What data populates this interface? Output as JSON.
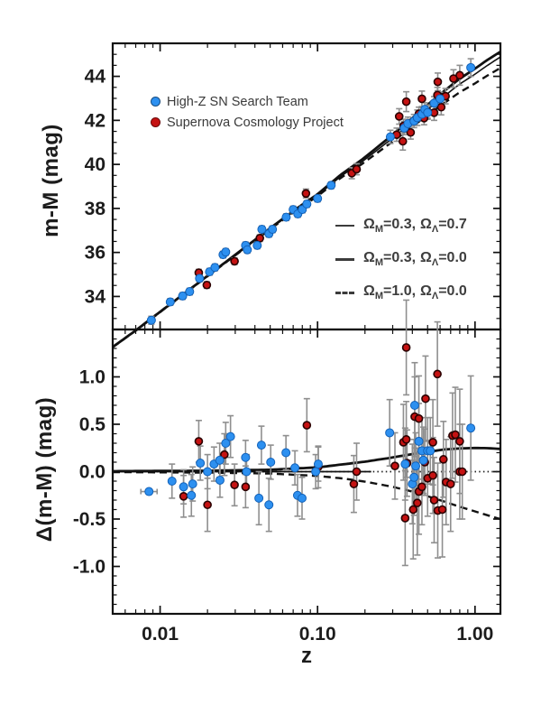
{
  "window": {
    "bg": "#ffffff"
  },
  "axes": {
    "x": {
      "label": "z"
    },
    "top_y": {
      "label": "m-M (mag)"
    },
    "bottom_y": {
      "label": "Δ(m-M) (mag)"
    }
  },
  "legend_teams": [
    {
      "label": "High-Z SN Search Team",
      "color": "#2d90f0",
      "edge": "#1261b8"
    },
    {
      "label": "Supernova Cosmology Project",
      "color": "#c51212",
      "edge": "#2a0000"
    }
  ],
  "legend_models": [
    {
      "omega1": "Ω",
      "sub1": "M",
      "eq1": "=0.3,",
      "omega2": "Ω",
      "sub2": "Λ",
      "eq2": "=0.7",
      "style": "thin"
    },
    {
      "omega1": "Ω",
      "sub1": "M",
      "eq1": "=0.3,",
      "omega2": "Ω",
      "sub2": "Λ",
      "eq2": "=0.0",
      "style": "thick"
    },
    {
      "omega1": "Ω",
      "sub1": "M",
      "eq1": "=1.0,",
      "omega2": "Ω",
      "sub2": "Λ",
      "eq2": "=0.0",
      "style": "dashed"
    }
  ],
  "chart_data": [
    {
      "type": "scatter",
      "panel": "hubble-diagram",
      "title": "",
      "xlabel": "z",
      "ylabel": "m-M (mag)",
      "xscale": "log",
      "xlim": [
        0.005,
        1.45
      ],
      "ylim": [
        32.5,
        45.5
      ],
      "x_major_ticks": [
        0.01,
        0.1,
        1.0
      ],
      "x_tick_labels": [
        "0.01",
        "0.10",
        "1.00"
      ],
      "x_minor_ticks": [
        0.006,
        0.007,
        0.008,
        0.009,
        0.02,
        0.03,
        0.04,
        0.05,
        0.06,
        0.07,
        0.08,
        0.09,
        0.2,
        0.3,
        0.4,
        0.5,
        0.6,
        0.7,
        0.8,
        0.9
      ],
      "y_major_ticks": [
        34,
        36,
        38,
        40,
        42,
        44
      ],
      "y_minor_step": 0.5,
      "series": [
        {
          "name": "Supernova Cosmology Project",
          "color": "#c51212",
          "edge": "#2a0000",
          "points": [
            [
              0.0176,
              35.08,
              0.15
            ],
            [
              0.0198,
              34.52,
              0.15
            ],
            [
              0.0297,
              35.6,
              0.15
            ],
            [
              0.043,
              36.65,
              0.15
            ],
            [
              0.0844,
              38.68,
              0.2
            ],
            [
              0.165,
              39.6,
              0.25
            ],
            [
              0.177,
              39.78,
              0.25
            ],
            [
              0.318,
              41.35,
              0.3
            ],
            [
              0.33,
              42.18,
              0.35
            ],
            [
              0.348,
              41.05,
              0.4
            ],
            [
              0.352,
              41.75,
              0.3
            ],
            [
              0.366,
              42.85,
              0.45
            ],
            [
              0.39,
              41.45,
              0.3
            ],
            [
              0.44,
              42.3,
              0.3
            ],
            [
              0.46,
              42.98,
              0.35
            ],
            [
              0.475,
              42.1,
              0.3
            ],
            [
              0.5,
              42.4,
              0.3
            ],
            [
              0.55,
              42.35,
              0.35
            ],
            [
              0.577,
              43.15,
              0.35
            ],
            [
              0.58,
              43.75,
              0.4
            ],
            [
              0.61,
              42.6,
              0.35
            ],
            [
              0.65,
              43.1,
              0.35
            ],
            [
              0.73,
              43.9,
              0.4
            ],
            [
              0.8,
              44.05,
              0.45
            ]
          ]
        },
        {
          "name": "High-Z SN Search Team",
          "color": "#2d90f0",
          "edge": "#1261b8",
          "points": [
            [
              0.0088,
              32.92,
              0.18
            ],
            [
              0.0116,
              33.75,
              0.15
            ],
            [
              0.0139,
              34.02,
              0.15
            ],
            [
              0.0154,
              34.22,
              0.15
            ],
            [
              0.0178,
              34.82,
              0.15
            ],
            [
              0.0206,
              35.12,
              0.15
            ],
            [
              0.0223,
              35.32,
              0.15
            ],
            [
              0.0251,
              35.9,
              0.15
            ],
            [
              0.0261,
              36.02,
              0.15
            ],
            [
              0.0349,
              36.32,
              0.15
            ],
            [
              0.0358,
              36.12,
              0.15
            ],
            [
              0.0414,
              36.32,
              0.15
            ],
            [
              0.0443,
              37.05,
              0.15
            ],
            [
              0.0491,
              36.85,
              0.15
            ],
            [
              0.0517,
              37.05,
              0.15
            ],
            [
              0.0632,
              37.6,
              0.15
            ],
            [
              0.07,
              37.95,
              0.15
            ],
            [
              0.0749,
              37.75,
              0.15
            ],
            [
              0.08,
              37.95,
              0.15
            ],
            [
              0.0855,
              38.2,
              0.15
            ],
            [
              0.1,
              38.45,
              0.15
            ],
            [
              0.122,
              39.05,
              0.15
            ],
            [
              0.29,
              41.25,
              0.3
            ],
            [
              0.355,
              41.65,
              0.3
            ],
            [
              0.375,
              41.85,
              0.3
            ],
            [
              0.41,
              41.97,
              0.3
            ],
            [
              0.43,
              42.12,
              0.35
            ],
            [
              0.46,
              42.28,
              0.3
            ],
            [
              0.48,
              42.5,
              0.3
            ],
            [
              0.5,
              42.35,
              0.3
            ],
            [
              0.55,
              42.78,
              0.3
            ],
            [
              0.6,
              42.98,
              0.3
            ],
            [
              0.94,
              44.4,
              0.4
            ]
          ]
        }
      ],
      "models": {
        "baseline_open_m": [
          [
            0.005,
            31.7
          ],
          [
            0.007,
            32.45
          ],
          [
            0.009,
            33.05
          ],
          [
            0.012,
            33.72
          ],
          [
            0.016,
            34.4
          ],
          [
            0.022,
            35.15
          ],
          [
            0.03,
            35.88
          ],
          [
            0.04,
            36.55
          ],
          [
            0.055,
            37.3
          ],
          [
            0.075,
            38.0
          ],
          [
            0.1,
            38.6
          ],
          [
            0.14,
            39.45
          ],
          [
            0.19,
            40.1
          ],
          [
            0.26,
            40.85
          ],
          [
            0.36,
            41.65
          ],
          [
            0.5,
            42.5
          ],
          [
            0.65,
            43.15
          ],
          [
            0.8,
            43.65
          ],
          [
            1.0,
            44.1
          ],
          [
            1.2,
            44.5
          ],
          [
            1.45,
            44.88
          ]
        ],
        "lcdm_dm": [
          [
            0.005,
            0.005
          ],
          [
            0.02,
            0.01
          ],
          [
            0.05,
            0.02
          ],
          [
            0.1,
            0.045
          ],
          [
            0.15,
            0.08
          ],
          [
            0.2,
            0.105
          ],
          [
            0.3,
            0.15
          ],
          [
            0.4,
            0.185
          ],
          [
            0.5,
            0.21
          ],
          [
            0.65,
            0.235
          ],
          [
            0.8,
            0.245
          ],
          [
            1.0,
            0.25
          ],
          [
            1.2,
            0.248
          ],
          [
            1.45,
            0.24
          ]
        ],
        "eds_dm": [
          [
            0.005,
            -0.005
          ],
          [
            0.02,
            -0.01
          ],
          [
            0.05,
            -0.02
          ],
          [
            0.1,
            -0.045
          ],
          [
            0.15,
            -0.075
          ],
          [
            0.2,
            -0.105
          ],
          [
            0.3,
            -0.16
          ],
          [
            0.4,
            -0.21
          ],
          [
            0.5,
            -0.26
          ],
          [
            0.65,
            -0.32
          ],
          [
            0.8,
            -0.37
          ],
          [
            1.0,
            -0.42
          ],
          [
            1.2,
            -0.46
          ],
          [
            1.45,
            -0.5
          ]
        ]
      }
    },
    {
      "type": "scatter",
      "panel": "residuals",
      "title": "",
      "xlabel": "z",
      "ylabel": "Δ(m-M) (mag)",
      "xscale": "log",
      "xlim": [
        0.005,
        1.45
      ],
      "ylim": [
        -1.5,
        1.5
      ],
      "y_major_ticks": [
        -1.0,
        -0.5,
        0.0,
        0.5,
        1.0
      ],
      "y_tick_labels": [
        "-1.0",
        "-0.5",
        "0.0",
        "0.5",
        "1.0"
      ],
      "y_minor_step": 0.1,
      "zero_line": "dotted",
      "open_model_solid_until_z": 0.22,
      "series": [
        {
          "name": "Supernova Cosmology Project",
          "color": "#c51212",
          "edge": "#2a0000",
          "points": [
            [
              0.0141,
              -0.26,
              0.22
            ],
            [
              0.0176,
              0.32,
              0.22
            ],
            [
              0.02,
              -0.35,
              0.28
            ],
            [
              0.0256,
              0.18,
              0.22
            ],
            [
              0.0297,
              -0.14,
              0.22
            ],
            [
              0.0349,
              -0.16,
              0.22
            ],
            [
              0.0855,
              0.49,
              0.28
            ],
            [
              0.101,
              0.05,
              0.22
            ],
            [
              0.17,
              -0.13,
              0.3
            ],
            [
              0.177,
              0.0,
              0.3
            ],
            [
              0.31,
              0.06,
              0.35
            ],
            [
              0.351,
              0.31,
              0.4
            ],
            [
              0.36,
              -0.49,
              0.5
            ],
            [
              0.366,
              1.31,
              0.5
            ],
            [
              0.366,
              0.34,
              0.4
            ],
            [
              0.37,
              0.09,
              0.35
            ],
            [
              0.405,
              -0.4,
              0.52
            ],
            [
              0.414,
              0.58,
              0.42
            ],
            [
              0.43,
              -0.33,
              0.55
            ],
            [
              0.44,
              0.56,
              0.45
            ],
            [
              0.44,
              -0.21,
              0.45
            ],
            [
              0.46,
              -0.16,
              0.4
            ],
            [
              0.48,
              0.1,
              0.35
            ],
            [
              0.485,
              0.77,
              0.45
            ],
            [
              0.5,
              -0.07,
              0.4
            ],
            [
              0.54,
              0.31,
              0.45
            ],
            [
              0.54,
              -0.04,
              0.4
            ],
            [
              0.55,
              -0.3,
              0.45
            ],
            [
              0.577,
              1.03,
              0.55
            ],
            [
              0.58,
              -0.41,
              0.5
            ],
            [
              0.62,
              -0.4,
              0.5
            ],
            [
              0.63,
              0.13,
              0.4
            ],
            [
              0.655,
              -0.11,
              0.45
            ],
            [
              0.7,
              -0.13,
              0.5
            ],
            [
              0.72,
              0.38,
              0.45
            ],
            [
              0.75,
              0.39,
              0.5
            ],
            [
              0.8,
              0.32,
              0.55
            ],
            [
              0.8,
              0.0,
              0.5
            ],
            [
              0.83,
              0.0,
              0.5
            ]
          ]
        },
        {
          "name": "High-Z SN Search Team",
          "color": "#2d90f0",
          "edge": "#1261b8",
          "points": [
            [
              0.0085,
              -0.21,
              0.2,
              "x"
            ],
            [
              0.0119,
              -0.1,
              0.18
            ],
            [
              0.0141,
              -0.16,
              0.18
            ],
            [
              0.0158,
              -0.25,
              0.22
            ],
            [
              0.0161,
              -0.13,
              0.18
            ],
            [
              0.018,
              0.09,
              0.18
            ],
            [
              0.02,
              0.0,
              0.18
            ],
            [
              0.022,
              0.08,
              0.18
            ],
            [
              0.0239,
              0.12,
              0.18
            ],
            [
              0.024,
              -0.09,
              0.18
            ],
            [
              0.0261,
              0.3,
              0.22
            ],
            [
              0.028,
              0.37,
              0.22
            ],
            [
              0.0349,
              0.15,
              0.18
            ],
            [
              0.0354,
              0.0,
              0.18
            ],
            [
              0.0424,
              -0.28,
              0.28
            ],
            [
              0.044,
              0.28,
              0.2
            ],
            [
              0.0491,
              -0.35,
              0.28
            ],
            [
              0.0504,
              0.1,
              0.18
            ],
            [
              0.063,
              0.2,
              0.18
            ],
            [
              0.0718,
              0.04,
              0.18
            ],
            [
              0.0746,
              -0.25,
              0.22
            ],
            [
              0.0797,
              -0.28,
              0.22
            ],
            [
              0.0973,
              0.0,
              0.18
            ],
            [
              0.101,
              0.08,
              0.18
            ],
            [
              0.287,
              0.41,
              0.35
            ],
            [
              0.36,
              0.08,
              0.38
            ],
            [
              0.4,
              -0.13,
              0.42
            ],
            [
              0.41,
              -0.06,
              0.4
            ],
            [
              0.414,
              0.7,
              0.45
            ],
            [
              0.42,
              0.06,
              0.35
            ],
            [
              0.44,
              0.32,
              0.4
            ],
            [
              0.46,
              0.22,
              0.35
            ],
            [
              0.47,
              0.12,
              0.35
            ],
            [
              0.5,
              0.22,
              0.35
            ],
            [
              0.52,
              0.22,
              0.35
            ],
            [
              0.94,
              0.46,
              0.55
            ]
          ]
        }
      ]
    }
  ]
}
